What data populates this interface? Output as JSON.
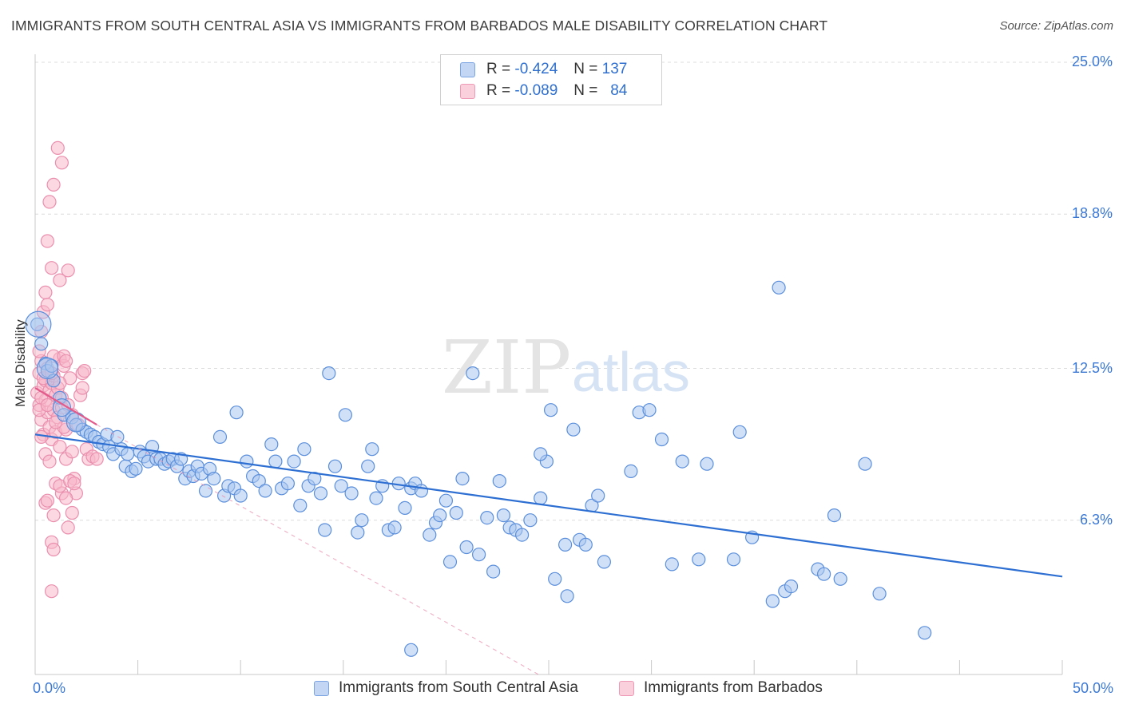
{
  "title": "IMMIGRANTS FROM SOUTH CENTRAL ASIA VS IMMIGRANTS FROM BARBADOS MALE DISABILITY CORRELATION CHART",
  "source": "Source: ZipAtlas.com",
  "watermark": {
    "zip": "ZIP",
    "atlas": "atlas"
  },
  "legend": {
    "rows": [
      {
        "r_label": "R =",
        "r_value": "-0.424",
        "n_label": "N =",
        "n_value": "137"
      },
      {
        "r_label": "R =",
        "r_value": "-0.089",
        "n_label": "N =",
        "n_value": "84"
      }
    ]
  },
  "bottom_legend": [
    "Immigrants from South Central Asia",
    "Immigrants from Barbados"
  ],
  "colors": {
    "blue_fill": "#a9c6ef",
    "blue_stroke": "#5b8fdc",
    "blue_line": "#2d6fd2",
    "pink_fill": "#f7b8cb",
    "pink_stroke": "#ea8fae",
    "pink_line": "#e35b8b",
    "grid": "#dcdcdc",
    "tick_text": "#3b78d4"
  },
  "chart_data": {
    "type": "scatter",
    "title": "IMMIGRANTS FROM SOUTH CENTRAL ASIA VS IMMIGRANTS FROM BARBADOS MALE DISABILITY CORRELATION CHART",
    "xlabel": "",
    "ylabel": "Male Disability",
    "xlim": [
      0,
      50
    ],
    "ylim": [
      0,
      25.0
    ],
    "x_tick_labels": [
      "0.0%",
      "50.0%"
    ],
    "y_ticks": [
      6.3,
      12.5,
      18.8,
      25.0
    ],
    "y_tick_labels": [
      "6.3%",
      "12.5%",
      "18.8%",
      "25.0%"
    ],
    "grid": true,
    "legend_position": "top-center",
    "series": [
      {
        "name": "Immigrants from South Central Asia",
        "color": "#5b8fdc",
        "trend": {
          "x": [
            0,
            50
          ],
          "y": [
            9.8,
            4.0
          ]
        },
        "points": [
          [
            0.1,
            14.3
          ],
          [
            0.3,
            13.5
          ],
          [
            0.5,
            12.7
          ],
          [
            0.6,
            12.4
          ],
          [
            0.8,
            12.6
          ],
          [
            0.9,
            12.0
          ],
          [
            1.2,
            11.3
          ],
          [
            1.4,
            10.6
          ],
          [
            1.8,
            10.5
          ],
          [
            2.0,
            10.2
          ],
          [
            2.3,
            10.0
          ],
          [
            2.5,
            9.9
          ],
          [
            2.7,
            9.8
          ],
          [
            2.9,
            9.7
          ],
          [
            3.1,
            9.5
          ],
          [
            3.3,
            9.4
          ],
          [
            3.5,
            9.8
          ],
          [
            3.6,
            9.3
          ],
          [
            3.8,
            9.0
          ],
          [
            4.0,
            9.7
          ],
          [
            4.2,
            9.2
          ],
          [
            4.4,
            8.5
          ],
          [
            4.5,
            9.0
          ],
          [
            4.7,
            8.3
          ],
          [
            4.9,
            8.4
          ],
          [
            5.1,
            9.1
          ],
          [
            5.3,
            8.9
          ],
          [
            5.5,
            8.7
          ],
          [
            5.7,
            9.3
          ],
          [
            5.9,
            8.8
          ],
          [
            6.1,
            8.8
          ],
          [
            6.3,
            8.6
          ],
          [
            6.5,
            8.7
          ],
          [
            6.7,
            8.8
          ],
          [
            6.9,
            8.5
          ],
          [
            7.1,
            8.8
          ],
          [
            7.3,
            8.0
          ],
          [
            7.5,
            8.3
          ],
          [
            7.7,
            8.1
          ],
          [
            7.9,
            8.5
          ],
          [
            8.1,
            8.2
          ],
          [
            8.3,
            7.5
          ],
          [
            8.5,
            8.4
          ],
          [
            8.7,
            8.0
          ],
          [
            9.0,
            9.7
          ],
          [
            9.2,
            7.3
          ],
          [
            9.4,
            7.7
          ],
          [
            9.7,
            7.6
          ],
          [
            9.8,
            10.7
          ],
          [
            10.0,
            7.3
          ],
          [
            10.3,
            8.7
          ],
          [
            10.6,
            8.1
          ],
          [
            10.9,
            7.9
          ],
          [
            11.2,
            7.5
          ],
          [
            11.5,
            9.4
          ],
          [
            11.7,
            8.7
          ],
          [
            12.0,
            7.6
          ],
          [
            12.3,
            7.8
          ],
          [
            12.6,
            8.7
          ],
          [
            12.9,
            6.9
          ],
          [
            13.1,
            9.2
          ],
          [
            13.3,
            7.7
          ],
          [
            13.6,
            8.0
          ],
          [
            13.9,
            7.4
          ],
          [
            14.1,
            5.9
          ],
          [
            14.3,
            12.3
          ],
          [
            14.6,
            8.5
          ],
          [
            14.9,
            7.7
          ],
          [
            15.1,
            10.6
          ],
          [
            15.4,
            7.4
          ],
          [
            15.7,
            5.8
          ],
          [
            15.9,
            6.3
          ],
          [
            16.2,
            8.5
          ],
          [
            16.4,
            9.2
          ],
          [
            16.6,
            7.2
          ],
          [
            16.9,
            7.7
          ],
          [
            17.2,
            5.9
          ],
          [
            17.5,
            6.0
          ],
          [
            17.7,
            7.8
          ],
          [
            18.0,
            6.8
          ],
          [
            18.3,
            7.6
          ],
          [
            18.5,
            7.8
          ],
          [
            18.8,
            7.5
          ],
          [
            19.2,
            5.7
          ],
          [
            19.5,
            6.2
          ],
          [
            19.7,
            6.5
          ],
          [
            20.0,
            7.1
          ],
          [
            20.2,
            4.6
          ],
          [
            20.5,
            6.6
          ],
          [
            20.8,
            8.0
          ],
          [
            21.0,
            5.2
          ],
          [
            21.3,
            12.3
          ],
          [
            21.6,
            4.9
          ],
          [
            22.0,
            6.4
          ],
          [
            22.3,
            4.2
          ],
          [
            22.6,
            7.9
          ],
          [
            22.8,
            6.5
          ],
          [
            23.1,
            6.0
          ],
          [
            23.4,
            5.9
          ],
          [
            23.7,
            5.7
          ],
          [
            24.1,
            6.3
          ],
          [
            24.6,
            7.2
          ],
          [
            24.9,
            8.7
          ],
          [
            25.1,
            10.8
          ],
          [
            25.3,
            3.9
          ],
          [
            25.8,
            5.3
          ],
          [
            25.9,
            3.2
          ],
          [
            26.2,
            10.0
          ],
          [
            26.5,
            5.5
          ],
          [
            26.8,
            5.3
          ],
          [
            27.1,
            6.9
          ],
          [
            27.4,
            7.3
          ],
          [
            27.7,
            4.6
          ],
          [
            29.0,
            8.3
          ],
          [
            29.4,
            10.7
          ],
          [
            29.9,
            10.8
          ],
          [
            30.5,
            9.6
          ],
          [
            31.0,
            4.5
          ],
          [
            31.5,
            8.7
          ],
          [
            32.3,
            4.7
          ],
          [
            32.7,
            8.6
          ],
          [
            34.0,
            4.7
          ],
          [
            34.3,
            9.9
          ],
          [
            34.9,
            5.6
          ],
          [
            35.9,
            3.0
          ],
          [
            36.2,
            15.8
          ],
          [
            36.5,
            3.4
          ],
          [
            36.8,
            3.6
          ],
          [
            38.1,
            4.3
          ],
          [
            38.4,
            4.1
          ],
          [
            39.2,
            3.9
          ],
          [
            40.4,
            8.6
          ],
          [
            41.1,
            3.3
          ],
          [
            38.9,
            6.5
          ],
          [
            43.3,
            1.7
          ],
          [
            24.6,
            9.0
          ],
          [
            18.3,
            1.0
          ]
        ]
      },
      {
        "name": "Immigrants from Barbados",
        "color": "#ea8fae",
        "trend": {
          "x": [
            0,
            3.0
          ],
          "y": [
            11.7,
            10.2
          ]
        },
        "trend_dashed": {
          "x": [
            3.0,
            24.5
          ],
          "y": [
            10.2,
            0.0
          ]
        },
        "points": [
          [
            0.1,
            11.5
          ],
          [
            0.2,
            12.3
          ],
          [
            0.2,
            11.0
          ],
          [
            0.3,
            12.8
          ],
          [
            0.3,
            10.4
          ],
          [
            0.4,
            11.8
          ],
          [
            0.4,
            9.8
          ],
          [
            0.5,
            12.0
          ],
          [
            0.5,
            11.2
          ],
          [
            0.6,
            10.7
          ],
          [
            0.6,
            12.5
          ],
          [
            0.7,
            11.6
          ],
          [
            0.7,
            10.1
          ],
          [
            0.8,
            9.6
          ],
          [
            0.8,
            11.9
          ],
          [
            0.9,
            10.8
          ],
          [
            0.9,
            12.2
          ],
          [
            1.0,
            11.4
          ],
          [
            1.0,
            9.9
          ],
          [
            1.1,
            10.5
          ],
          [
            1.1,
            11.7
          ],
          [
            1.2,
            12.9
          ],
          [
            1.2,
            9.3
          ],
          [
            1.3,
            10.9
          ],
          [
            1.3,
            11.3
          ],
          [
            1.4,
            12.6
          ],
          [
            1.5,
            10.0
          ],
          [
            1.5,
            8.8
          ],
          [
            1.6,
            11.0
          ],
          [
            1.7,
            12.1
          ],
          [
            1.8,
            9.1
          ],
          [
            1.8,
            10.6
          ],
          [
            1.9,
            8.0
          ],
          [
            2.0,
            7.4
          ],
          [
            2.2,
            11.4
          ],
          [
            2.3,
            12.3
          ],
          [
            2.3,
            11.7
          ],
          [
            2.4,
            12.4
          ],
          [
            2.5,
            9.2
          ],
          [
            2.6,
            8.8
          ],
          [
            2.8,
            8.9
          ],
          [
            3.0,
            8.8
          ],
          [
            0.2,
            13.2
          ],
          [
            0.3,
            14.0
          ],
          [
            0.4,
            14.8
          ],
          [
            0.5,
            15.6
          ],
          [
            0.6,
            17.7
          ],
          [
            0.7,
            19.3
          ],
          [
            0.9,
            20.0
          ],
          [
            1.1,
            21.5
          ],
          [
            1.3,
            20.9
          ],
          [
            0.8,
            16.6
          ],
          [
            1.2,
            16.1
          ],
          [
            1.6,
            16.5
          ],
          [
            0.6,
            15.1
          ],
          [
            0.9,
            13.0
          ],
          [
            1.4,
            13.0
          ],
          [
            0.5,
            9.0
          ],
          [
            0.7,
            8.7
          ],
          [
            1.0,
            7.8
          ],
          [
            1.3,
            7.4
          ],
          [
            1.5,
            7.2
          ],
          [
            1.8,
            6.6
          ],
          [
            1.6,
            6.0
          ],
          [
            0.9,
            6.5
          ],
          [
            0.8,
            5.4
          ],
          [
            0.9,
            5.1
          ],
          [
            0.8,
            3.4
          ],
          [
            1.2,
            7.7
          ],
          [
            0.5,
            7.0
          ],
          [
            0.6,
            7.1
          ],
          [
            1.7,
            7.9
          ],
          [
            1.4,
            10.1
          ],
          [
            0.3,
            11.3
          ],
          [
            0.2,
            10.8
          ],
          [
            0.4,
            12.1
          ],
          [
            0.6,
            11.0
          ],
          [
            0.8,
            12.3
          ],
          [
            1.0,
            10.3
          ],
          [
            1.2,
            11.9
          ],
          [
            1.5,
            12.8
          ],
          [
            0.3,
            9.7
          ],
          [
            2.1,
            10.2
          ],
          [
            1.9,
            7.8
          ]
        ]
      }
    ]
  }
}
